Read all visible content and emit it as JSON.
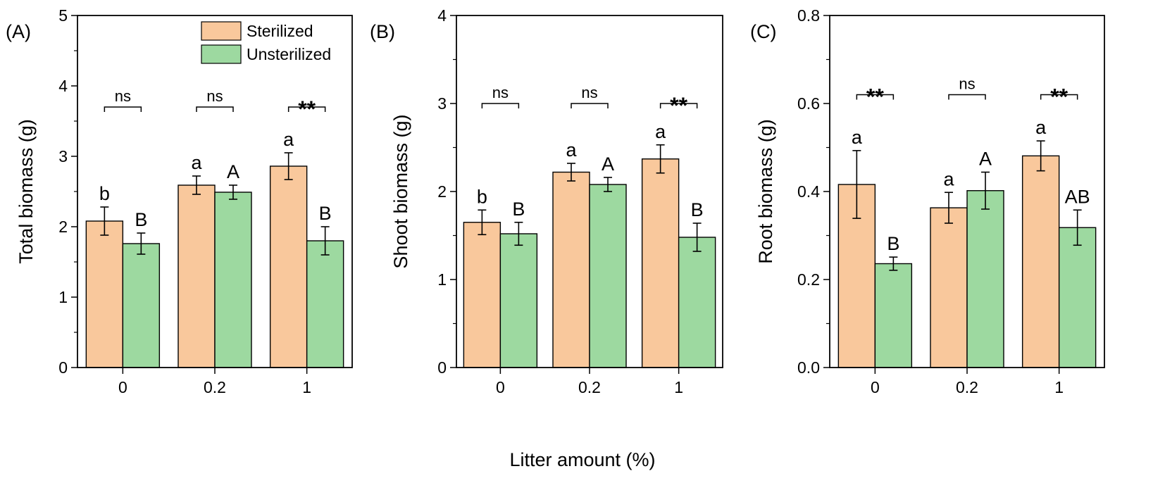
{
  "colors": {
    "sterilized": "#f9c89c",
    "unsterilized": "#9dd9a0",
    "axis": "#000000"
  },
  "legend": {
    "items": [
      "Sterilized",
      "Unsterilized"
    ]
  },
  "shared_xlabel": "Litter amount (%)",
  "chart_data": [
    {
      "type": "bar",
      "panel": "(A)",
      "ylabel": "Total biomass (g)",
      "ylim": [
        0,
        5
      ],
      "yticks": [
        "0",
        "1",
        "2",
        "3",
        "4",
        "5"
      ],
      "categories": [
        "0",
        "0.2",
        "1"
      ],
      "series": [
        {
          "name": "Sterilized",
          "values": [
            2.08,
            2.59,
            2.86
          ],
          "errors": [
            0.2,
            0.13,
            0.19
          ],
          "letters": [
            "b",
            "a",
            "a"
          ]
        },
        {
          "name": "Unsterilized",
          "values": [
            1.76,
            2.49,
            1.8
          ],
          "errors": [
            0.15,
            0.1,
            0.2
          ],
          "letters": [
            "B",
            "A",
            "B"
          ]
        }
      ],
      "significance": [
        "ns",
        "ns",
        "**"
      ],
      "sig_y": 3.7
    },
    {
      "type": "bar",
      "panel": "(B)",
      "ylabel": "Shoot biomass (g)",
      "ylim": [
        0,
        4
      ],
      "yticks": [
        "0",
        "1",
        "2",
        "3",
        "4"
      ],
      "categories": [
        "0",
        "0.2",
        "1"
      ],
      "series": [
        {
          "name": "Sterilized",
          "values": [
            1.65,
            2.22,
            2.37
          ],
          "errors": [
            0.14,
            0.1,
            0.16
          ],
          "letters": [
            "b",
            "a",
            "a"
          ]
        },
        {
          "name": "Unsterilized",
          "values": [
            1.52,
            2.08,
            1.48
          ],
          "errors": [
            0.13,
            0.08,
            0.16
          ],
          "letters": [
            "B",
            "A",
            "B"
          ]
        }
      ],
      "significance": [
        "ns",
        "ns",
        "**"
      ],
      "sig_y": 3.0
    },
    {
      "type": "bar",
      "panel": "(C)",
      "ylabel": "Root biomass (g)",
      "ylim": [
        0,
        0.8
      ],
      "yticks": [
        "0.0",
        "0.2",
        "0.4",
        "0.6",
        "0.8"
      ],
      "categories": [
        "0",
        "0.2",
        "1"
      ],
      "series": [
        {
          "name": "Sterilized",
          "values": [
            0.416,
            0.363,
            0.481
          ],
          "errors": [
            0.077,
            0.035,
            0.034
          ],
          "letters": [
            "a",
            "a",
            "a"
          ]
        },
        {
          "name": "Unsterilized",
          "values": [
            0.236,
            0.402,
            0.318
          ],
          "errors": [
            0.015,
            0.042,
            0.04
          ],
          "letters": [
            "B",
            "A",
            "AB"
          ]
        }
      ],
      "significance": [
        "**",
        "ns",
        "**"
      ],
      "sig_y": 0.62
    }
  ]
}
